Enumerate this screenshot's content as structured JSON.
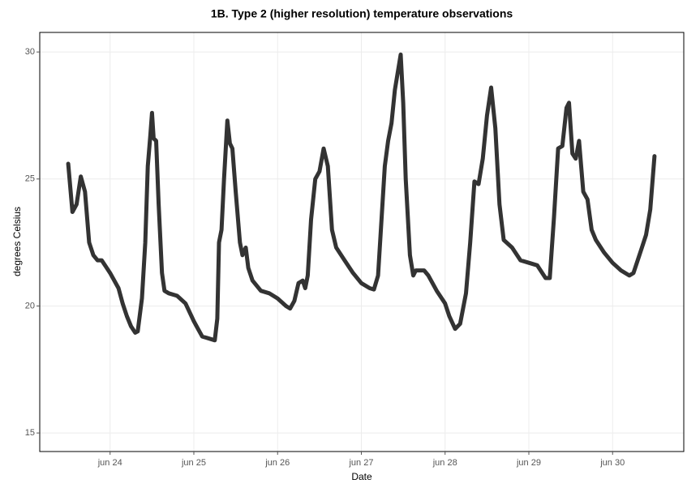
{
  "chart_data": {
    "type": "line",
    "title": "1B. Type 2 (higher resolution) temperature observations",
    "x_label": "Date",
    "y_label": "degrees Celsius",
    "xlim": [
      23.16,
      30.85
    ],
    "ylim": [
      14.27,
      30.77
    ],
    "xticks": [
      {
        "value": 24,
        "label": "jun 24"
      },
      {
        "value": 25,
        "label": "jun 25"
      },
      {
        "value": 26,
        "label": "jun 26"
      },
      {
        "value": 27,
        "label": "jun 27"
      },
      {
        "value": 28,
        "label": "jun 28"
      },
      {
        "value": 29,
        "label": "jun 29"
      },
      {
        "value": 30,
        "label": "jun 30"
      }
    ],
    "yticks": [
      15,
      20,
      25,
      30
    ],
    "grid": true,
    "series": [
      {
        "color": "#222222",
        "x": [
          23.5,
          23.55,
          23.6,
          23.65,
          23.7,
          23.75,
          23.8,
          23.85,
          23.9,
          24.0,
          24.1,
          24.15,
          24.2,
          24.25,
          24.3,
          24.33,
          24.38,
          24.42,
          24.45,
          24.48,
          24.5,
          24.52,
          24.55,
          24.58,
          24.62,
          24.65,
          24.7,
          24.8,
          24.9,
          25.0,
          25.05,
          25.1,
          25.2,
          25.25,
          25.28,
          25.3,
          25.33,
          25.36,
          25.4,
          25.43,
          25.46,
          25.5,
          25.55,
          25.58,
          25.62,
          25.65,
          25.7,
          25.8,
          25.9,
          26.0,
          26.1,
          26.15,
          26.2,
          26.25,
          26.3,
          26.33,
          26.36,
          26.4,
          26.45,
          26.5,
          26.55,
          26.6,
          26.65,
          26.7,
          26.8,
          26.9,
          27.0,
          27.1,
          27.15,
          27.2,
          27.28,
          27.32,
          27.36,
          27.4,
          27.47,
          27.5,
          27.53,
          27.58,
          27.62,
          27.65,
          27.75,
          27.8,
          27.9,
          28.0,
          28.05,
          28.12,
          28.18,
          28.25,
          28.3,
          28.35,
          28.4,
          28.45,
          28.5,
          28.55,
          28.6,
          28.65,
          28.7,
          28.8,
          28.9,
          29.0,
          29.1,
          29.2,
          29.25,
          29.3,
          29.35,
          29.4,
          29.45,
          29.48,
          29.52,
          29.56,
          29.6,
          29.65,
          29.7,
          29.75,
          29.8,
          29.9,
          30.0,
          30.1,
          30.2,
          30.25,
          30.3,
          30.35,
          30.4,
          30.45,
          30.5
        ],
        "values": [
          25.6,
          23.7,
          24.0,
          25.1,
          24.5,
          22.5,
          22.0,
          21.8,
          21.8,
          21.3,
          20.7,
          20.1,
          19.6,
          19.2,
          18.95,
          19.0,
          20.3,
          22.5,
          25.5,
          26.7,
          27.6,
          26.6,
          26.5,
          24.0,
          21.3,
          20.6,
          20.5,
          20.4,
          20.1,
          19.4,
          19.1,
          18.8,
          18.7,
          18.65,
          19.5,
          22.5,
          23.0,
          25.0,
          27.3,
          26.4,
          26.2,
          24.5,
          22.5,
          22.0,
          22.3,
          21.5,
          21.0,
          20.6,
          20.5,
          20.3,
          20.0,
          19.9,
          20.2,
          20.9,
          21.0,
          20.7,
          21.2,
          23.4,
          25.0,
          25.3,
          26.2,
          25.5,
          23.0,
          22.3,
          21.8,
          21.3,
          20.9,
          20.7,
          20.65,
          21.2,
          25.5,
          26.5,
          27.2,
          28.5,
          29.9,
          28.0,
          25.0,
          22.0,
          21.2,
          21.4,
          21.4,
          21.2,
          20.6,
          20.1,
          19.6,
          19.1,
          19.3,
          20.5,
          22.5,
          24.9,
          24.8,
          25.8,
          27.5,
          28.6,
          27.0,
          24.0,
          22.6,
          22.3,
          21.8,
          21.7,
          21.6,
          21.1,
          21.1,
          23.5,
          26.2,
          26.3,
          27.8,
          28.0,
          26.0,
          25.8,
          26.5,
          24.5,
          24.2,
          23.0,
          22.6,
          22.1,
          21.7,
          21.4,
          21.2,
          21.3,
          21.8,
          22.3,
          22.8,
          23.8,
          25.9
        ]
      }
    ]
  }
}
